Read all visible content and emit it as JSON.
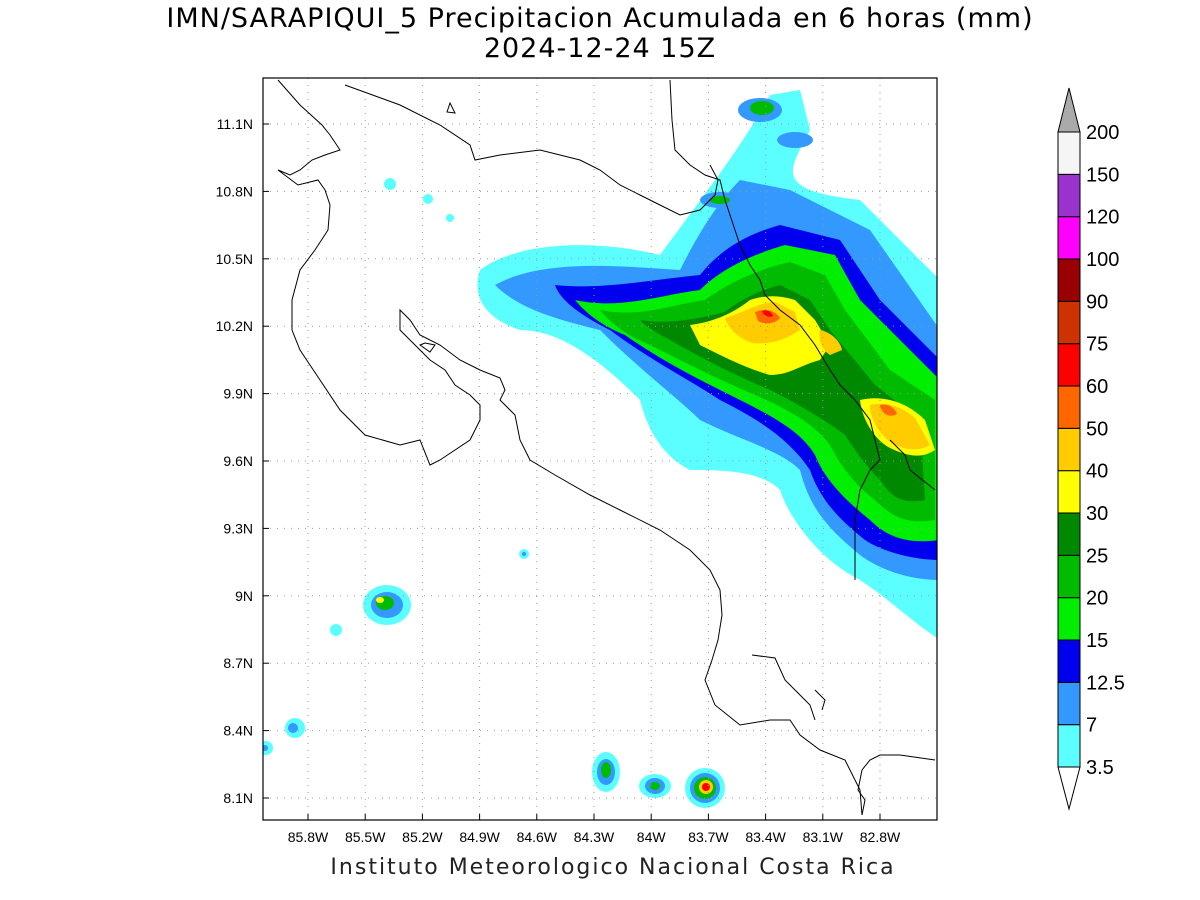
{
  "title": {
    "line1": "IMN/SARAPIQUI_5 Precipitacion Acumulada en 6 horas (mm)",
    "line2": "2024-12-24 15Z"
  },
  "footer": "Instituto Meteorologico Nacional Costa Rica",
  "map": {
    "lon_ticks": [
      "85.8W",
      "85.5W",
      "85.2W",
      "84.9W",
      "84.6W",
      "84.3W",
      "84W",
      "83.7W",
      "83.4W",
      "83.1W",
      "82.8W"
    ],
    "lat_ticks": [
      "11.1N",
      "10.8N",
      "10.5N",
      "10.2N",
      "9.9N",
      "9.6N",
      "9.3N",
      "9N",
      "8.7N",
      "8.4N",
      "8.1N"
    ],
    "grid": true
  },
  "colorbar": {
    "labels": [
      "3.5",
      "7",
      "12.5",
      "15",
      "20",
      "25",
      "30",
      "40",
      "50",
      "60",
      "75",
      "90",
      "100",
      "120",
      "150",
      "200"
    ],
    "colors": [
      "#5cffff",
      "#3399ff",
      "#0000ee",
      "#00ee00",
      "#00bb00",
      "#008800",
      "#ffff00",
      "#ffcc00",
      "#ff6600",
      "#ff0000",
      "#cc3300",
      "#990000",
      "#ff00ff",
      "#9933cc",
      "#f5f5f5"
    ],
    "over_color": "#aaaaaa",
    "under_color": "#ffffff"
  }
}
